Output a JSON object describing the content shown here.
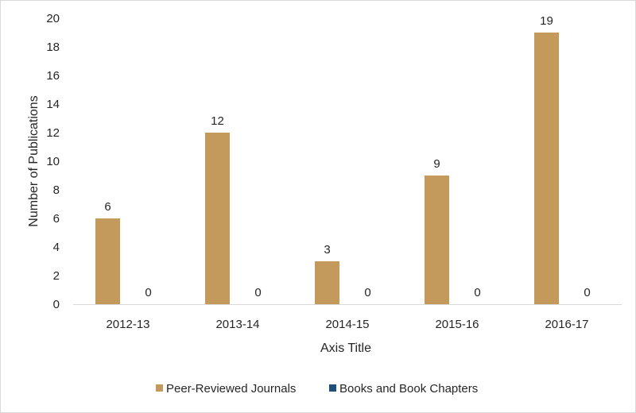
{
  "chart_data": {
    "type": "bar",
    "categories": [
      "2012-13",
      "2013-14",
      "2014-15",
      "2015-16",
      "2016-17"
    ],
    "series": [
      {
        "name": "Peer-Reviewed Journals",
        "values": [
          6,
          12,
          3,
          9,
          19
        ],
        "color": "#C39A5B"
      },
      {
        "name": "Books and Book Chapters",
        "values": [
          0,
          0,
          0,
          0,
          0
        ],
        "color": "#1F4E79"
      }
    ],
    "title": "",
    "xlabel": "Axis Title",
    "ylabel": "Number of Publications",
    "ylim": [
      0,
      20
    ],
    "yticks": [
      "0",
      "2",
      "4",
      "6",
      "8",
      "10",
      "12",
      "14",
      "16",
      "18",
      "20"
    ],
    "grid": false,
    "legend": "bottom"
  }
}
